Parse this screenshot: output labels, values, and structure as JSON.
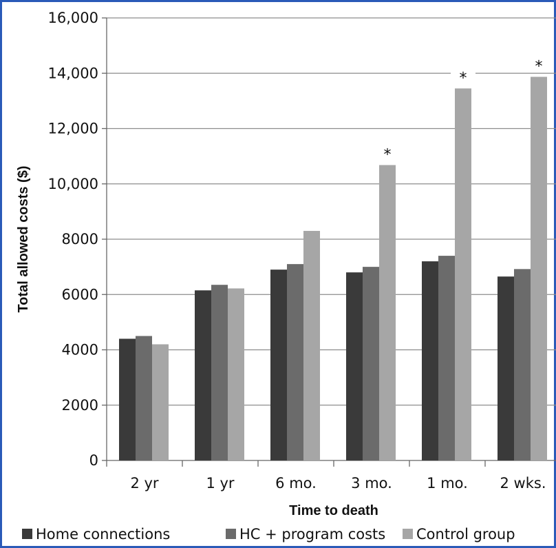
{
  "chart_data": {
    "type": "bar",
    "title": "",
    "xlabel": "Time to death",
    "ylabel": "Total allowed costs ($)",
    "categories": [
      "2 yr",
      "1 yr",
      "6 mo.",
      "3 mo.",
      "1 mo.",
      "2 wks."
    ],
    "series": [
      {
        "name": "Home connections",
        "color": "#3a3a3a",
        "values": [
          4400,
          6150,
          6900,
          6800,
          7200,
          6650
        ]
      },
      {
        "name": "HC + program costs",
        "color": "#6b6b6b",
        "values": [
          4500,
          6350,
          7100,
          7000,
          7400,
          6920
        ]
      },
      {
        "name": "Control group",
        "color": "#a6a6a6",
        "values": [
          4200,
          6220,
          8300,
          10680,
          13450,
          13870
        ]
      }
    ],
    "ylim": [
      0,
      16000
    ],
    "yticks": [
      0,
      2000,
      4000,
      6000,
      8000,
      10000,
      12000,
      14000,
      16000
    ],
    "ytick_labels": [
      "0",
      "2000",
      "4000",
      "6000",
      "8000",
      "10,000",
      "12,000",
      "14,000",
      "16,000"
    ],
    "grid": true,
    "legend_position": "bottom",
    "annotations": [
      {
        "category": "3 mo.",
        "text": "*"
      },
      {
        "category": "1 mo.",
        "text": "*"
      },
      {
        "category": "2 wks.",
        "text": "*"
      }
    ]
  }
}
